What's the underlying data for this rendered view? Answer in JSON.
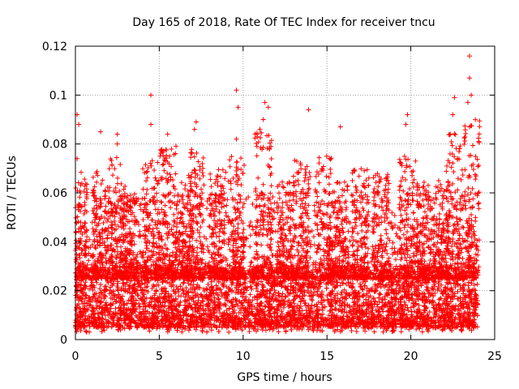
{
  "chart_data": {
    "type": "scatter",
    "title": "Day 165 of 2018, Rate Of TEC Index for receiver tncu",
    "xlabel": "GPS time / hours",
    "ylabel": "ROTI / TECUs",
    "xlim": [
      0,
      25
    ],
    "ylim": [
      0,
      0.12
    ],
    "xticks": [
      0,
      5,
      10,
      15,
      20,
      25
    ],
    "xtick_labels": [
      "0",
      "5",
      "10",
      "15",
      "20",
      "25"
    ],
    "yticks": [
      0,
      0.02,
      0.04,
      0.06,
      0.08,
      0.1,
      0.12
    ],
    "ytick_labels": [
      "0",
      "0.02",
      "0.04",
      "0.06",
      "0.08",
      "0.1",
      "0.12"
    ],
    "grid": true,
    "marker": "+",
    "color": "#ff0000",
    "series": [
      {
        "name": "ROTI",
        "x_range": [
          0,
          24
        ],
        "baseline_band": [
          0.005,
          0.03
        ],
        "notable_points": [
          {
            "x": 0.1,
            "y": 0.092
          },
          {
            "x": 0.2,
            "y": 0.088
          },
          {
            "x": 0.1,
            "y": 0.074
          },
          {
            "x": 0.3,
            "y": 0.06
          },
          {
            "x": 0.2,
            "y": 0.054
          },
          {
            "x": 1.5,
            "y": 0.085
          },
          {
            "x": 2.5,
            "y": 0.084
          },
          {
            "x": 2.5,
            "y": 0.08
          },
          {
            "x": 4.5,
            "y": 0.1
          },
          {
            "x": 4.5,
            "y": 0.088
          },
          {
            "x": 5.5,
            "y": 0.084
          },
          {
            "x": 7.2,
            "y": 0.089
          },
          {
            "x": 7.1,
            "y": 0.086
          },
          {
            "x": 9.6,
            "y": 0.102
          },
          {
            "x": 9.7,
            "y": 0.095
          },
          {
            "x": 9.6,
            "y": 0.082
          },
          {
            "x": 11.3,
            "y": 0.097
          },
          {
            "x": 11.5,
            "y": 0.095
          },
          {
            "x": 11.2,
            "y": 0.09
          },
          {
            "x": 11.0,
            "y": 0.086
          },
          {
            "x": 13.9,
            "y": 0.094
          },
          {
            "x": 15.8,
            "y": 0.087
          },
          {
            "x": 19.8,
            "y": 0.092
          },
          {
            "x": 19.7,
            "y": 0.088
          },
          {
            "x": 22.6,
            "y": 0.099
          },
          {
            "x": 22.5,
            "y": 0.092
          },
          {
            "x": 23.5,
            "y": 0.116
          },
          {
            "x": 23.5,
            "y": 0.107
          },
          {
            "x": 23.6,
            "y": 0.1
          },
          {
            "x": 23.4,
            "y": 0.097
          },
          {
            "x": 23.5,
            "y": 0.087
          }
        ],
        "bursts": [
          {
            "center": 0.2,
            "peak": 0.07
          },
          {
            "center": 1.5,
            "peak": 0.07
          },
          {
            "center": 2.5,
            "peak": 0.075
          },
          {
            "center": 3.2,
            "peak": 0.06
          },
          {
            "center": 4.5,
            "peak": 0.075
          },
          {
            "center": 5.5,
            "peak": 0.08
          },
          {
            "center": 6.5,
            "peak": 0.065
          },
          {
            "center": 7.2,
            "peak": 0.08
          },
          {
            "center": 8.5,
            "peak": 0.07
          },
          {
            "center": 9.6,
            "peak": 0.075
          },
          {
            "center": 11.2,
            "peak": 0.085
          },
          {
            "center": 12.5,
            "peak": 0.065
          },
          {
            "center": 13.5,
            "peak": 0.075
          },
          {
            "center": 14.8,
            "peak": 0.075
          },
          {
            "center": 15.8,
            "peak": 0.065
          },
          {
            "center": 17.0,
            "peak": 0.07
          },
          {
            "center": 18.2,
            "peak": 0.068
          },
          {
            "center": 19.8,
            "peak": 0.075
          },
          {
            "center": 20.8,
            "peak": 0.065
          },
          {
            "center": 21.8,
            "peak": 0.065
          },
          {
            "center": 22.6,
            "peak": 0.085
          },
          {
            "center": 23.6,
            "peak": 0.09
          }
        ]
      }
    ]
  }
}
